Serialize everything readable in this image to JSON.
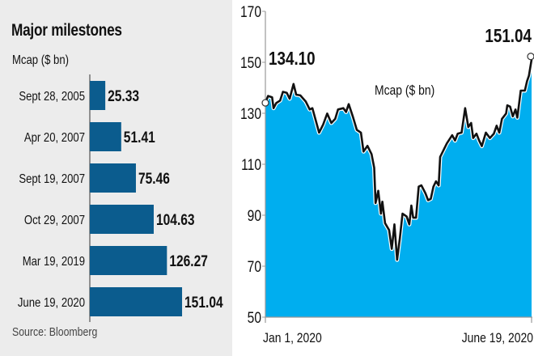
{
  "chart_data": [
    {
      "type": "bar",
      "orientation": "horizontal",
      "title": "Major milestones",
      "subtitle": "Mcap ($ bn)",
      "source": "Source: Bloomberg",
      "categories": [
        "Sept 28, 2005",
        "Apr 20, 2007",
        "Sept 19, 2007",
        "Oct 29, 2007",
        "Mar 19, 2019",
        "June 19, 2020"
      ],
      "values": [
        25.33,
        51.41,
        75.46,
        104.63,
        126.27,
        151.04
      ],
      "value_labels": [
        "25.33",
        "51.41",
        "75.46",
        "104.63",
        "126.27",
        "151.04"
      ],
      "bar_color": "#0b5c8e"
    },
    {
      "type": "area",
      "label": "Mcap ($ bn)",
      "xlabel": "",
      "ylabel": "",
      "x_tick_labels": [
        "Jan 1, 2020",
        "June 19, 2020"
      ],
      "x_unit": "days since Jan 1, 2020",
      "xlim": [
        0,
        170
      ],
      "ylim": [
        50,
        170
      ],
      "y_ticks": [
        "50",
        "70",
        "90",
        "110",
        "130",
        "150",
        "170"
      ],
      "annotations": [
        {
          "text": "134.10",
          "x": 0,
          "y": 134.1
        },
        {
          "text": "151.04",
          "x": 170,
          "y": 151.04
        }
      ],
      "fill_color": "#00aeef",
      "line_color": "#111111",
      "x": [
        0,
        1.7,
        4.3,
        5.2,
        6.9,
        9.4,
        11.2,
        13.7,
        15.5,
        18,
        19.7,
        22.3,
        25.8,
        28.3,
        30,
        34.3,
        36.9,
        39.5,
        42.1,
        44.6,
        46.4,
        49.8,
        51.5,
        53.2,
        55.8,
        58.4,
        61,
        62.7,
        65.2,
        67.8,
        69.5,
        70.4,
        72.1,
        73.8,
        74.7,
        76.4,
        79,
        80.7,
        82.4,
        84.1,
        85.9,
        87.6,
        90.2,
        91.9,
        93.2,
        94.4,
        96.2,
        97.9,
        99.6,
        102.2,
        103.9,
        105.6,
        107.3,
        109,
        110.7,
        111.6,
        113.3,
        115.9,
        119.3,
        121.1,
        122.8,
        125.3,
        127.6,
        129.6,
        131.4,
        132.7,
        134.8,
        136.5,
        138.2,
        140.8,
        143.4,
        145.9,
        147.7,
        149.4,
        151.1,
        153.7,
        154.5,
        156.3,
        158,
        159.7,
        160.9,
        163.1,
        165.7,
        167.1,
        168.3,
        170
      ],
      "values": [
        134.1,
        136.8,
        136.3,
        132,
        134,
        135,
        138.4,
        138,
        135.7,
        141.5,
        137.3,
        137,
        134.6,
        131.5,
        132,
        122.4,
        125.6,
        129.9,
        126.2,
        127.8,
        131.5,
        132,
        130.5,
        133.6,
        128.8,
        123.5,
        122.4,
        115,
        117.2,
        114,
        108.6,
        94.8,
        99.6,
        90.6,
        95.3,
        86.9,
        84.2,
        76.8,
        86.4,
        72.5,
        81,
        90.6,
        89.5,
        86.4,
        93.8,
        89,
        89,
        101.2,
        101.7,
        98.6,
        95.9,
        96.4,
        101.2,
        103.3,
        101.7,
        112.9,
        115,
        118.2,
        121.4,
        119.3,
        122,
        122.4,
        132,
        124.6,
        126.2,
        120.3,
        122,
        119.3,
        117.1,
        122.4,
        120.3,
        122,
        125.1,
        122.4,
        127.8,
        129.9,
        133.1,
        132.6,
        128.8,
        131.5,
        128.3,
        138.9,
        138.9,
        142.6,
        144.7,
        151.04
      ]
    }
  ]
}
